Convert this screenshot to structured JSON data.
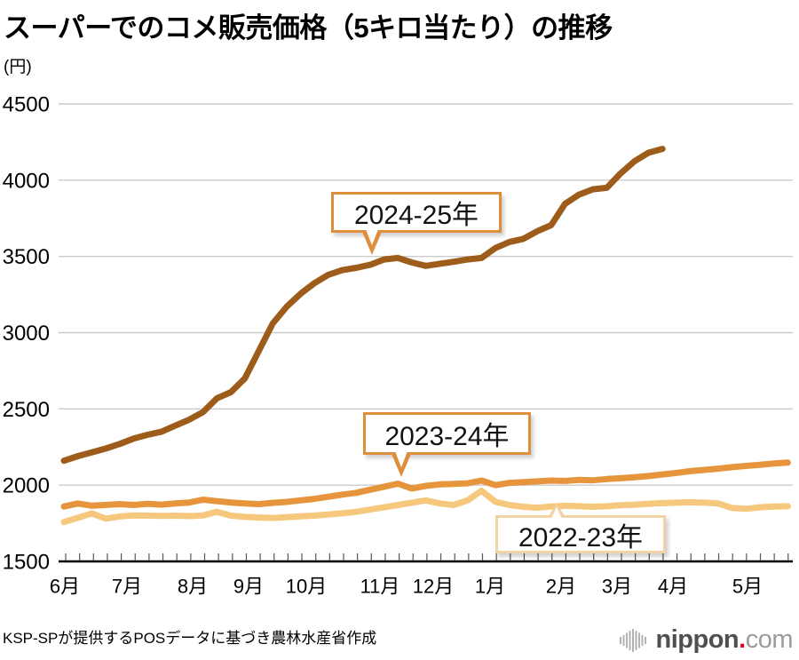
{
  "page": {
    "source_note": "KSP-SPが提供するPOSデータに基づき農林水産省作成"
  },
  "logo": {
    "brand": "nippon",
    "dot": ".",
    "tld": "com"
  },
  "chart_data": {
    "type": "line",
    "title": "スーパーでのコメ販売価格（5キロ当たり）の推移",
    "unit_label": "(円)",
    "ylabel": "円",
    "ylim": [
      1500,
      4500
    ],
    "y_ticks": [
      1500,
      2000,
      2500,
      3000,
      3500,
      4000,
      4500
    ],
    "grid": "horizontal",
    "legend_position": "inline-callouts",
    "x_tick_unit": "week",
    "x_months": [
      "6月",
      "7月",
      "8月",
      "9月",
      "10月",
      "11月",
      "12月",
      "1月",
      "2月",
      "3月",
      "4月",
      "5月"
    ],
    "series": [
      {
        "name": "2024-25年",
        "color": "#9e5c1a",
        "values": [
          2160,
          2190,
          2215,
          2240,
          2270,
          2305,
          2330,
          2350,
          2390,
          2430,
          2480,
          2570,
          2610,
          2700,
          2880,
          3060,
          3170,
          3255,
          3325,
          3380,
          3410,
          3425,
          3445,
          3480,
          3490,
          3460,
          3438,
          3452,
          3465,
          3480,
          3490,
          3555,
          3595,
          3615,
          3665,
          3705,
          3845,
          3905,
          3940,
          3950,
          4045,
          4125,
          4180,
          4205
        ]
      },
      {
        "name": "2023-24年",
        "color": "#e6953c",
        "values": [
          1860,
          1880,
          1865,
          1870,
          1876,
          1870,
          1878,
          1872,
          1880,
          1886,
          1905,
          1895,
          1886,
          1880,
          1876,
          1884,
          1890,
          1900,
          1910,
          1924,
          1938,
          1950,
          1970,
          1990,
          2010,
          1978,
          1995,
          2005,
          2008,
          2012,
          2030,
          2000,
          2015,
          2020,
          2025,
          2030,
          2028,
          2034,
          2032,
          2040,
          2045,
          2052,
          2060,
          2070,
          2080,
          2092,
          2100,
          2108,
          2118,
          2126,
          2134,
          2142,
          2148
        ]
      },
      {
        "name": "2022-23年",
        "color": "#f6c87e",
        "values": [
          1758,
          1786,
          1815,
          1780,
          1795,
          1802,
          1800,
          1798,
          1800,
          1797,
          1802,
          1825,
          1800,
          1792,
          1788,
          1785,
          1790,
          1796,
          1800,
          1808,
          1815,
          1825,
          1840,
          1855,
          1870,
          1885,
          1900,
          1880,
          1870,
          1900,
          1963,
          1890,
          1870,
          1858,
          1852,
          1860,
          1865,
          1862,
          1858,
          1862,
          1868,
          1872,
          1878,
          1882,
          1885,
          1888,
          1885,
          1880,
          1850,
          1845,
          1855,
          1860,
          1862
        ]
      }
    ],
    "annotations": [
      {
        "label": "2024-25年"
      },
      {
        "label": "2023-24年"
      },
      {
        "label": "2022-23年"
      }
    ]
  }
}
